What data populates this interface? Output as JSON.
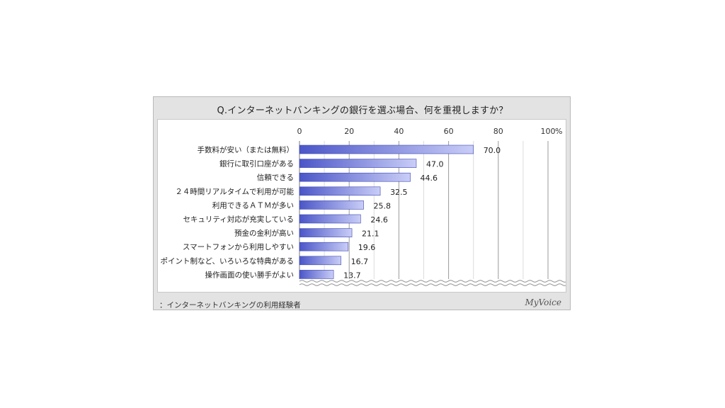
{
  "title": "Q.インターネットバンキングの銀行を選ぶ場合、何を重視しますか？",
  "footnote": "：インターネットバンキングの利用経験者",
  "brand": "MyVoice",
  "colors": {
    "bar_dark": "#4b56c8",
    "bar_light": "#c9cdf7"
  },
  "chart_data": {
    "type": "bar",
    "orientation": "horizontal",
    "categories": [
      "手数料が安い（または無料）",
      "銀行に取引口座がある",
      "信頼できる",
      "２４時間リアルタイムで利用が可能",
      "利用できるＡＴＭが多い",
      "セキュリティ対応が充実している",
      "預金の金利が高い",
      "スマートフォンから利用しやすい",
      "ポイント制など、いろいろな特典がある",
      "操作画面の使い勝手がよい"
    ],
    "values": [
      70.0,
      47.0,
      44.6,
      32.5,
      25.8,
      24.6,
      21.1,
      19.6,
      16.7,
      13.7
    ],
    "value_labels": [
      "70.0",
      "47.0",
      "44.6",
      "32.5",
      "25.8",
      "24.6",
      "21.1",
      "19.6",
      "16.7",
      "13.7"
    ],
    "xlim": [
      0,
      100
    ],
    "ticks": [
      "0",
      "20",
      "40",
      "60",
      "80",
      "100"
    ],
    "unit": "%",
    "grid": true
  }
}
